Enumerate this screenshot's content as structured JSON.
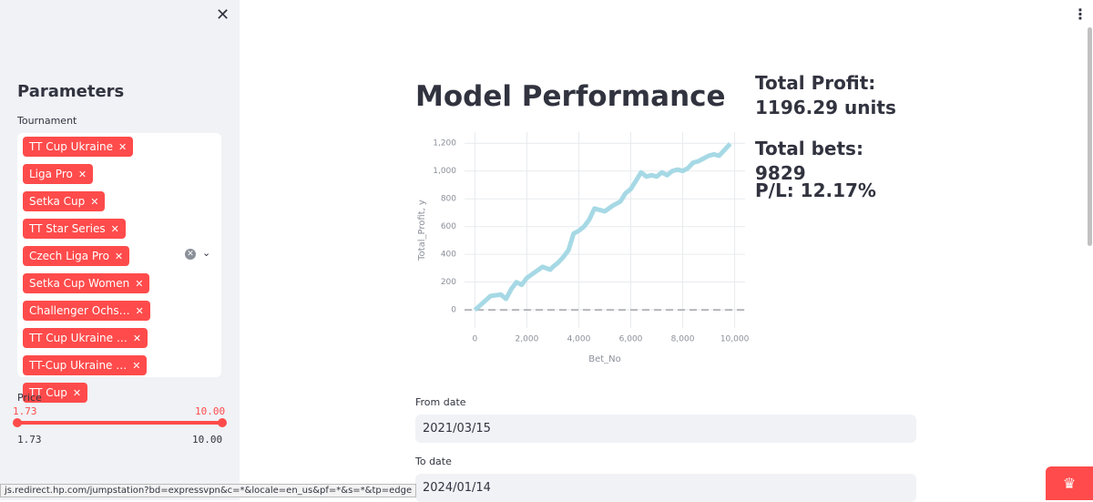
{
  "sidebar": {
    "title": "Parameters",
    "tournament_label": "Tournament",
    "tournaments": [
      "TT Cup Ukraine",
      "Liga Pro",
      "Setka Cup",
      "TT Star Series",
      "Czech Liga Pro",
      "Setka Cup Women",
      "Challenger Ochs…",
      "TT Cup Ukraine …",
      "TT-Cup Ukraine …",
      "TT Cup"
    ],
    "price_label": "Price",
    "price_low": "1.73",
    "price_high": "10.00",
    "price_min": "1.73",
    "price_max": "10.00"
  },
  "main": {
    "title": "Model Performance",
    "total_profit": "Total Profit: 1196.29 units",
    "total_bets": "Total bets: 9829",
    "pl": "P/L: 12.17%",
    "from_label": "From date",
    "from_value": "2021/03/15",
    "to_label": "To date",
    "to_value": "2024/01/14"
  },
  "status_bar": "js.redirect.hp.com/jumpstation?bd=expressvpn&c=*&locale=en_us&pf=*&s=*&tp=edge",
  "chart_data": {
    "type": "line",
    "x_label": "Bet_No",
    "y_label": "Total_Profit, y",
    "color": "#a6d9e5",
    "x": [
      0,
      300,
      600,
      1000,
      1200,
      1400,
      1600,
      1800,
      2000,
      2300,
      2600,
      2900,
      3000,
      3200,
      3400,
      3600,
      3800,
      4000,
      4200,
      4400,
      4600,
      4800,
      5000,
      5300,
      5600,
      5800,
      6000,
      6200,
      6400,
      6600,
      6800,
      7000,
      7200,
      7400,
      7600,
      7800,
      8000,
      8200,
      8400,
      8600,
      8800,
      9000,
      9200,
      9400,
      9600,
      9829
    ],
    "values": [
      0,
      50,
      100,
      110,
      80,
      150,
      200,
      180,
      230,
      270,
      310,
      290,
      310,
      340,
      380,
      430,
      550,
      570,
      600,
      650,
      730,
      720,
      710,
      750,
      780,
      840,
      870,
      930,
      990,
      960,
      970,
      960,
      990,
      970,
      1000,
      1010,
      1000,
      1020,
      1060,
      1070,
      1090,
      1110,
      1120,
      1110,
      1150,
      1196
    ],
    "xlim": [
      -400,
      10400
    ],
    "ylim": [
      -130,
      1280
    ],
    "xticks": [
      0,
      {
        "value": 2000,
        "label": "2,000"
      },
      {
        "value": 4000,
        "label": "4,000"
      },
      {
        "value": 6000,
        "label": "6,000"
      },
      {
        "value": 8000,
        "label": "8,000"
      },
      {
        "value": 10000,
        "label": "10,000"
      }
    ],
    "yticks": [
      0,
      200,
      400,
      600,
      800,
      {
        "value": 1000,
        "label": "1,000"
      },
      {
        "value": 1200,
        "label": "1,200"
      }
    ],
    "grid": true
  }
}
